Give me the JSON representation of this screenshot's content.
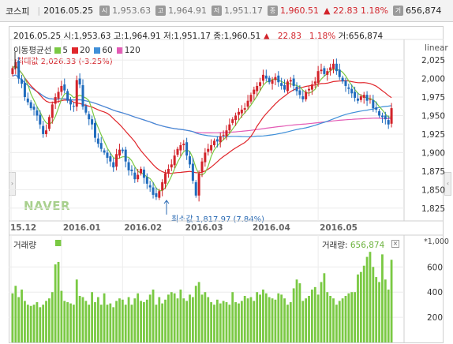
{
  "topbar": {
    "name": "코스피",
    "date": "2016.05.25",
    "open_badge": "시",
    "open": "1,953.63",
    "high_badge": "고",
    "high": "1,964.91",
    "low_badge": "저",
    "low": "1,951.17",
    "close_badge": "종",
    "close": "1,960.51",
    "change_arrow": "▲",
    "change": "22.83",
    "change_pct": "1.18%",
    "volume_badge": "거",
    "volume": "656,874"
  },
  "info": {
    "date": "2016.05.25",
    "open_label": "시:",
    "open": "1,953.63",
    "high_label": "고:",
    "high": "1,964.91",
    "low_label": "저:",
    "low": "1,951.17",
    "close_label": "종:",
    "close": "1,960.51",
    "arrow": "▲",
    "change": "22.83",
    "change_pct": "1.18%",
    "volume_label": "거:",
    "volume": "656,874"
  },
  "scale_label": "linear",
  "ma_legend": {
    "title": "이동평균선",
    "items": [
      {
        "label": "5",
        "color": "#7ac943"
      },
      {
        "label": "20",
        "color": "#e0262b"
      },
      {
        "label": "60",
        "color": "#3f8fd8"
      },
      {
        "label": "120",
        "color": "#e35bb5"
      }
    ]
  },
  "annotations": {
    "max": "최대값 2,026.33 (-3.25%)",
    "min": "최소값 1,817.97 (7.84%)"
  },
  "volume_panel": {
    "title": "거래량",
    "readout_label": "거래량:",
    "readout_value": "656,874",
    "unit": "*1,000",
    "close_icon": "×"
  },
  "watermark": "NAVER",
  "colors": {
    "up": "#d2232a",
    "down": "#1f6bbd",
    "volume": "#7ac943",
    "grid": "#e6e6e6"
  },
  "chart_data": [
    {
      "type": "candlestick",
      "yaxis": {
        "ticks": [
          1825,
          1850,
          1875,
          1900,
          1925,
          1950,
          1975,
          2000,
          2025
        ],
        "ylim": [
          1812,
          2040
        ]
      },
      "xaxis": {
        "labels": [
          "15.12",
          "2016.01",
          "2016.02",
          "2016.03",
          "2016.04",
          "2016.05"
        ]
      },
      "close": [
        2014,
        2022,
        2000,
        1993,
        1975,
        1968,
        1960,
        1958,
        1950,
        1938,
        1925,
        1930,
        1948,
        1965,
        1975,
        1982,
        1990,
        1984,
        1970,
        1965,
        1962,
        1998,
        1992,
        1962,
        1954,
        1945,
        1938,
        1920,
        1912,
        1905,
        1900,
        1893,
        1888,
        1880,
        1898,
        1904,
        1902,
        1888,
        1876,
        1875,
        1864,
        1870,
        1878,
        1866,
        1858,
        1853,
        1843,
        1840,
        1848,
        1860,
        1872,
        1878,
        1884,
        1896,
        1905,
        1910,
        1912,
        1896,
        1884,
        1862,
        1842,
        1872,
        1888,
        1900,
        1905,
        1910,
        1916,
        1915,
        1922,
        1924,
        1930,
        1938,
        1945,
        1950,
        1955,
        1958,
        1960,
        1970,
        1978,
        1985,
        1990,
        1995,
        2005,
        2000,
        1995,
        1998,
        2002,
        1995,
        1990,
        1985,
        1996,
        1998,
        1990,
        1983,
        1978,
        1972,
        1982,
        1986,
        1992,
        1996,
        2010,
        2012,
        2006,
        2010,
        2015,
        2020,
        2010,
        2002,
        1996,
        1990,
        1986,
        1980,
        1974,
        1970,
        1976,
        1978,
        1970,
        1972,
        1960,
        1958,
        1950,
        1948,
        1945,
        1938,
        1960
      ],
      "volume": [
        390,
        450,
        360,
        420,
        330,
        300,
        290,
        300,
        320,
        280,
        300,
        330,
        350,
        400,
        620,
        640,
        410,
        330,
        320,
        310,
        300,
        500,
        370,
        360,
        330,
        300,
        400,
        320,
        360,
        300,
        390,
        300,
        310,
        280,
        330,
        350,
        340,
        300,
        360,
        300,
        350,
        390,
        330,
        320,
        340,
        380,
        420,
        300,
        360,
        310,
        340,
        380,
        400,
        390,
        350,
        420,
        350,
        330,
        380,
        360,
        450,
        480,
        380,
        400,
        360,
        320,
        300,
        340,
        310,
        330,
        320,
        300,
        400,
        320,
        310,
        330,
        370,
        350,
        360,
        330,
        400,
        380,
        420,
        390,
        360,
        350,
        340,
        390,
        380,
        350,
        300,
        320,
        430,
        500,
        470,
        330,
        350,
        370,
        420,
        440,
        380,
        480,
        550,
        400,
        370,
        350,
        300,
        330,
        350,
        370,
        390,
        400,
        400,
        540,
        560,
        610,
        680,
        720,
        600,
        520,
        480,
        700,
        500,
        420,
        657
      ]
    }
  ]
}
